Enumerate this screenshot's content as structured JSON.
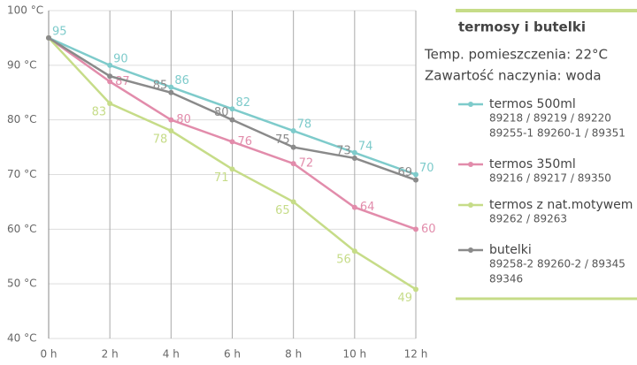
{
  "chart_data": {
    "type": "line",
    "legend_title": "termosy i butelki",
    "annotations": [
      "Temp. pomieszczenia: 22°C",
      "Zawartość naczynia: woda"
    ],
    "x": [
      0,
      2,
      4,
      6,
      8,
      10,
      12
    ],
    "xlim": [
      0,
      12
    ],
    "xticks": [
      {
        "value": 0,
        "label": "0 h"
      },
      {
        "value": 2,
        "label": "2 h"
      },
      {
        "value": 4,
        "label": "4 h"
      },
      {
        "value": 6,
        "label": "6 h"
      },
      {
        "value": 8,
        "label": "8 h"
      },
      {
        "value": 10,
        "label": "10 h"
      },
      {
        "value": 12,
        "label": "12 h"
      }
    ],
    "ylim": [
      40,
      100
    ],
    "yticks": [
      {
        "value": 40,
        "label": "40 °C"
      },
      {
        "value": 50,
        "label": "50 °C"
      },
      {
        "value": 60,
        "label": "60 °C"
      },
      {
        "value": 70,
        "label": "70 °C"
      },
      {
        "value": 80,
        "label": "80 °C"
      },
      {
        "value": 90,
        "label": "90 °C"
      },
      {
        "value": 100,
        "label": "100 °C"
      }
    ],
    "grid": true,
    "series": [
      {
        "name": "termos 500ml",
        "color": "#7ecbcb",
        "codes": [
          "89218 / 89219 / 89220",
          "89255-1    89260-1 / 89351"
        ],
        "values": [
          95,
          90,
          86,
          82,
          78,
          74,
          70
        ],
        "value_labels": [
          "95",
          "90",
          "86",
          "82",
          "78",
          "74",
          "70"
        ]
      },
      {
        "name": "termos 350ml",
        "color": "#e28cab",
        "codes": [
          "89216 / 89217 / 89350"
        ],
        "values": [
          95,
          87,
          80,
          76,
          72,
          64,
          60
        ],
        "value_labels": [
          null,
          "87",
          "80",
          "76",
          "72",
          "64",
          "60"
        ]
      },
      {
        "name": "termos z nat.motywem",
        "color": "#c6dc88",
        "codes": [
          "89262 / 89263"
        ],
        "values": [
          95,
          83,
          78,
          71,
          65,
          56,
          49
        ],
        "value_labels": [
          null,
          "83",
          "78",
          "71",
          "65",
          "56",
          "49"
        ]
      },
      {
        "name": "butelki",
        "color": "#8a8a8a",
        "codes": [
          "89258-2    89260-2 / 89345",
          "89346"
        ],
        "values": [
          95,
          88,
          85,
          80,
          75,
          73,
          69
        ],
        "value_labels": [
          null,
          null,
          "85",
          "80",
          "75",
          "73",
          "69"
        ]
      }
    ]
  }
}
